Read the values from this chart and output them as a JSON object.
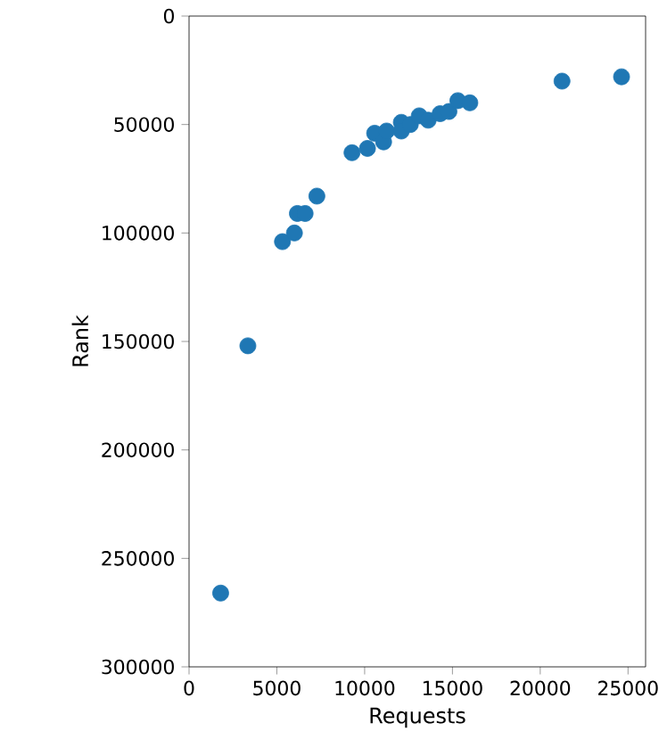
{
  "chart_data": {
    "type": "scatter",
    "xlabel": "Requests",
    "ylabel": "Rank",
    "xlim": [
      0,
      26000
    ],
    "ylim": [
      300000,
      0
    ],
    "xticks": [
      0,
      5000,
      10000,
      15000,
      20000,
      25000
    ],
    "yticks": [
      0,
      50000,
      100000,
      150000,
      200000,
      250000,
      300000
    ],
    "marker": "circle",
    "series": [
      {
        "color": "#1f77b4",
        "x": [
          1800,
          3350,
          5320,
          6000,
          6170,
          6610,
          7280,
          9280,
          10160,
          10570,
          11080,
          11250,
          12090,
          12090,
          12600,
          13110,
          13620,
          14300,
          14800,
          15310,
          15990,
          21240,
          24630
        ],
        "values": [
          266000,
          152000,
          104000,
          100000,
          91000,
          91000,
          83000,
          63000,
          61000,
          54000,
          58000,
          53000,
          49000,
          53000,
          50000,
          46000,
          48000,
          45000,
          44000,
          39000,
          40000,
          30000,
          28000
        ]
      }
    ]
  }
}
